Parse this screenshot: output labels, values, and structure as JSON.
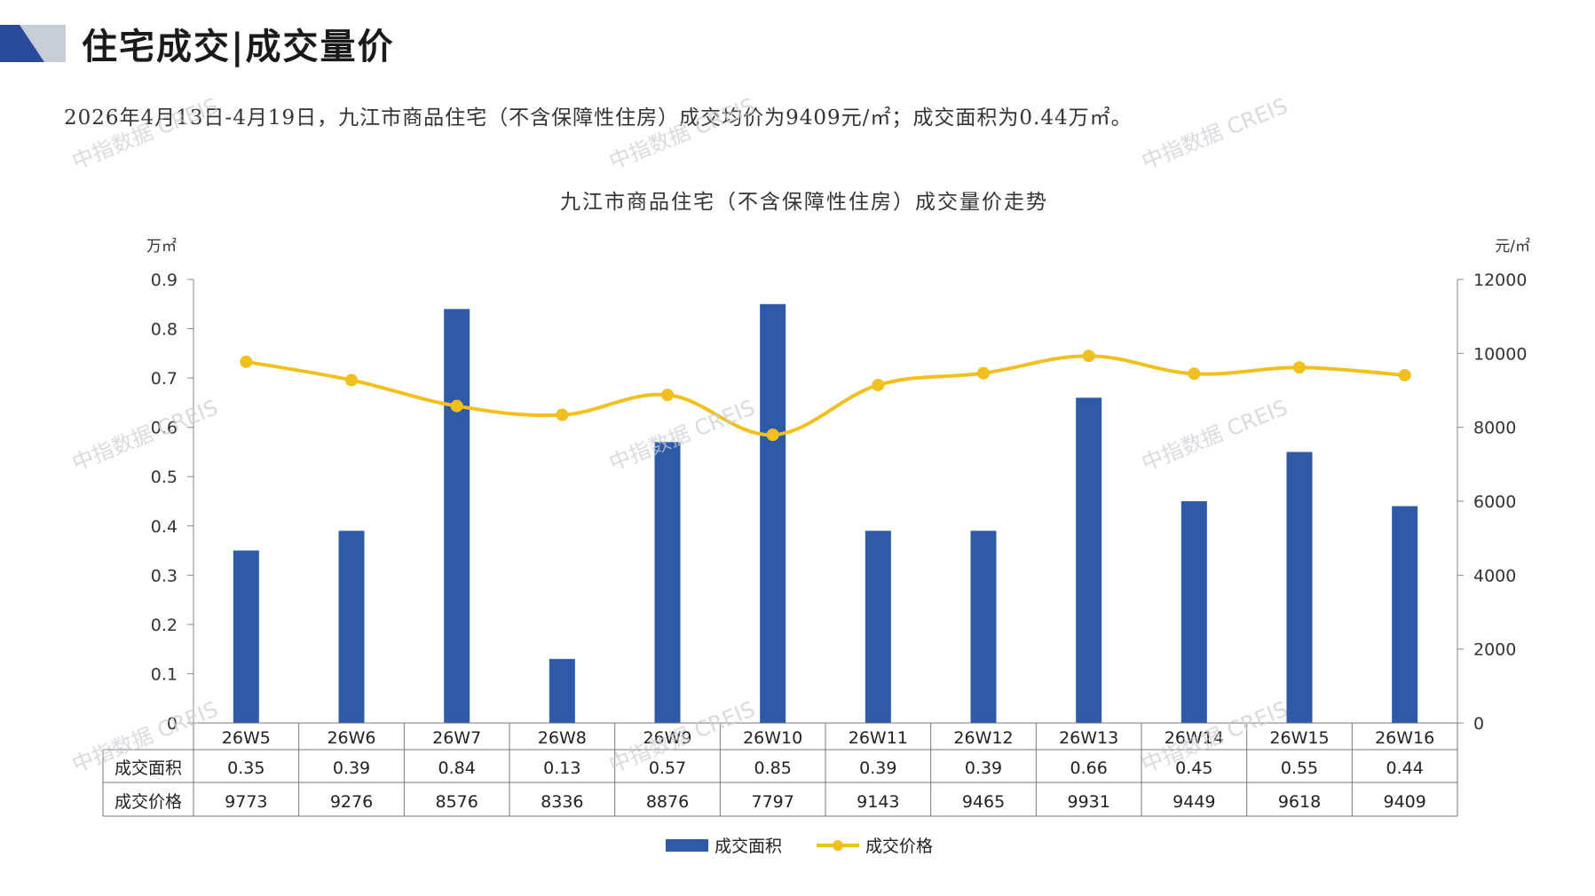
{
  "header": {
    "title": "住宅成交|成交量价",
    "summary": "2026年4月13日-4月19日，九江市商品住宅（不含保障性住房）成交均价为9409元/㎡；成交面积为0.44万㎡。"
  },
  "colors": {
    "bar": "#2F5AA8",
    "line": "#F2C01E",
    "accent_dark": "#2A4A9C",
    "accent_light": "#C8CCD6"
  },
  "watermark": "中指数据 CREIS",
  "chart_data": {
    "type": "bar",
    "title": "九江市商品住宅（不含保障性住房）成交量价走势",
    "categories": [
      "26W5",
      "26W6",
      "26W7",
      "26W8",
      "26W9",
      "26W10",
      "26W11",
      "26W12",
      "26W13",
      "26W14",
      "26W15",
      "26W16"
    ],
    "series": [
      {
        "name": "成交面积",
        "type": "bar",
        "axis": "left",
        "values": [
          0.35,
          0.39,
          0.84,
          0.13,
          0.57,
          0.85,
          0.39,
          0.39,
          0.66,
          0.45,
          0.55,
          0.44
        ],
        "labels": [
          "0.35",
          "0.39",
          "0.84",
          "0.13",
          "0.57",
          "0.85",
          "0.39",
          "0.39",
          "0.66",
          "0.45",
          "0.55",
          "0.44"
        ]
      },
      {
        "name": "成交价格",
        "type": "line",
        "axis": "right",
        "values": [
          9773,
          9276,
          8576,
          8336,
          8876,
          7797,
          9143,
          9465,
          9931,
          9449,
          9618,
          9409
        ]
      }
    ],
    "y_left": {
      "unit": "万㎡",
      "range": [
        0,
        0.9
      ],
      "ticks": [
        "0",
        "0.1",
        "0.2",
        "0.3",
        "0.4",
        "0.5",
        "0.6",
        "0.7",
        "0.8",
        "0.9"
      ]
    },
    "y_right": {
      "unit": "元/㎡",
      "range": [
        0,
        12000
      ],
      "ticks": [
        "0",
        "2000",
        "4000",
        "6000",
        "8000",
        "10000",
        "12000"
      ]
    },
    "data_table": true,
    "grid": false,
    "legend_position": "bottom"
  }
}
